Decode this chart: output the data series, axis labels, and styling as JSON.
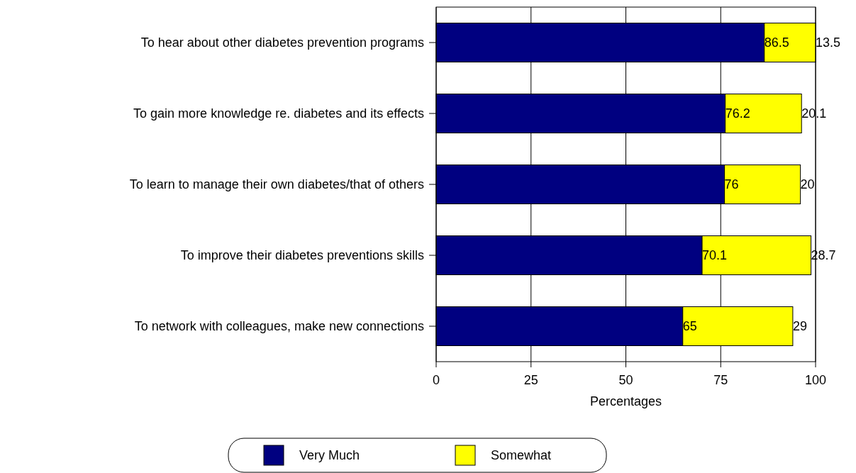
{
  "chart_data": {
    "type": "bar",
    "orientation": "horizontal",
    "stacked": true,
    "xlabel": "Percentages",
    "categories": [
      "To hear about other diabetes prevention programs",
      "To gain more knowledge re. diabetes and its effects",
      "To learn to manage their own diabetes/that of others",
      "To improve their diabetes preventions skills",
      "To network with colleagues, make new connections"
    ],
    "series": [
      {
        "name": "Very Much",
        "color": "#000080",
        "values": [
          86.5,
          76.2,
          76,
          70.1,
          65
        ]
      },
      {
        "name": "Somewhat",
        "color": "#ffff00",
        "values": [
          13.5,
          20.1,
          20,
          28.7,
          29
        ]
      }
    ],
    "xlim": [
      0,
      100
    ],
    "xticks": [
      0,
      25,
      50,
      75,
      100
    ],
    "grid": "x",
    "data_labels": true,
    "legend": "bottom"
  }
}
